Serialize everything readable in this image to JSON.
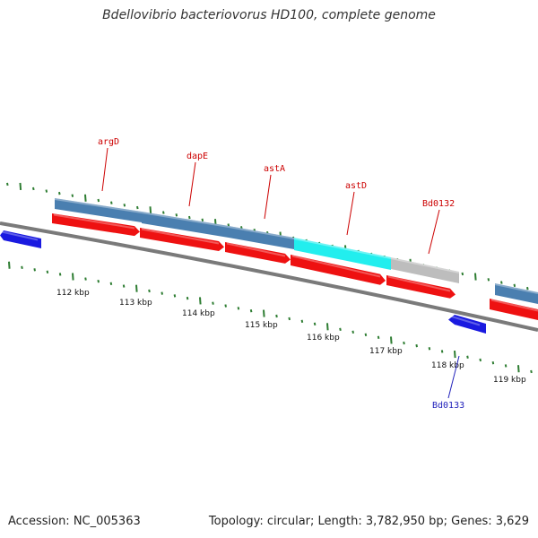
{
  "title": "Bdellovibrio bacteriovorus HD100, complete genome",
  "footer": {
    "accession": "Accession: NC_005363",
    "summary": "Topology: circular; Length: 3,782,950 bp; Genes: 3,629"
  },
  "colors": {
    "backbone": "#7a7a7a",
    "tick_green": "#2e7d32",
    "gene_forward": "#ee1111",
    "gene_reverse": "#1a1ae0",
    "feature_steelblue": "#4a7fb0",
    "feature_cyan": "#22eeee",
    "feature_grey": "#bdbdbd",
    "label_red": "#cc0000",
    "label_blue": "#2222bb"
  },
  "kbp_ticks": [
    "112 kbp",
    "113 kbp",
    "114 kbp",
    "115 kbp",
    "116 kbp",
    "117 kbp",
    "118 kbp",
    "119 kbp"
  ],
  "gene_labels": [
    {
      "name": "argD",
      "strand": "forward",
      "color": "red"
    },
    {
      "name": "dapE",
      "strand": "forward",
      "color": "red"
    },
    {
      "name": "astA",
      "strand": "forward",
      "color": "red"
    },
    {
      "name": "astD",
      "strand": "forward",
      "color": "red"
    },
    {
      "name": "Bd0132",
      "strand": "forward",
      "color": "red"
    },
    {
      "name": "Bd0133",
      "strand": "reverse",
      "color": "blue"
    }
  ]
}
